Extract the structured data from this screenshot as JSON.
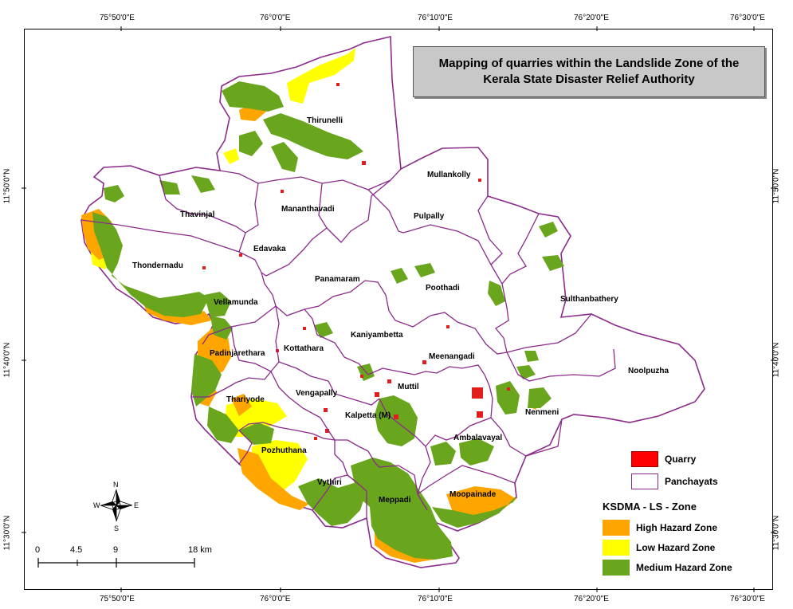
{
  "title": {
    "line1": "Mapping of quarries within the Landslide Zone of the",
    "line2": "Kerala State Disaster Relief Authority"
  },
  "coords": {
    "top": [
      "75°50'0\"E",
      "76°0'0\"E",
      "76°10'0\"E",
      "76°20'0\"E",
      "76°30'0\"E"
    ],
    "bottom": [
      "75°50'0\"E",
      "76°0'0\"E",
      "76°10'0\"E",
      "76°20'0\"E",
      "76°30'0\"E"
    ],
    "left": [
      "11°50'0\"N",
      "11°40'0\"N",
      "11°30'0\"N"
    ],
    "right": [
      "11°50'0\"N",
      "11°40'0\"N",
      "11°30'0\"N"
    ]
  },
  "panchayats": {
    "thirunelli": "Thirunelli",
    "mullankolly": "Mullankolly",
    "thavinjal": "Thavinjal",
    "mananthavadi": "Mananthavadi",
    "pulpally": "Pulpally",
    "edavaka": "Edavaka",
    "thondernadu": "Thondernadu",
    "panamaram": "Panamaram",
    "poothadi": "Poothadi",
    "sulthanbathery": "Sulthanbathery",
    "vellamunda": "Vellamunda",
    "kaniyambetta": "Kaniyambetta",
    "kottathara": "Kottathara",
    "padinjarethara": "Padinjarethara",
    "meenangadi": "Meenangadi",
    "noolpuzha": "Noolpuzha",
    "muttil": "Muttil",
    "vengapally": "Vengapally",
    "thariyode": "Thariyode",
    "kalpetta": "Kalpetta (M)",
    "nenmeni": "Nenmeni",
    "ambalavayal": "Ambalavayal",
    "pozhuthana": "Pozhuthana",
    "vythiri": "Vythiri",
    "meppadi": "Meppadi",
    "moopainade": "Moopainade"
  },
  "legend": {
    "quarry": "Quarry",
    "panchayats": "Panchayats",
    "zone_header": "KSDMA - LS - Zone",
    "high": "High Hazard Zone",
    "low": "Low Hazard Zone",
    "medium": "Medium Hazard Zone"
  },
  "colors": {
    "quarry": "#ff0000",
    "boundary": "#8b2a8b",
    "high": "#ffa500",
    "low": "#ffff00",
    "medium": "#6aa51e"
  },
  "scale_bar": {
    "ticks": [
      "0",
      "4.5",
      "9",
      "18 km"
    ]
  },
  "compass": {
    "n": "N",
    "s": "S",
    "e": "E",
    "w": "W"
  }
}
